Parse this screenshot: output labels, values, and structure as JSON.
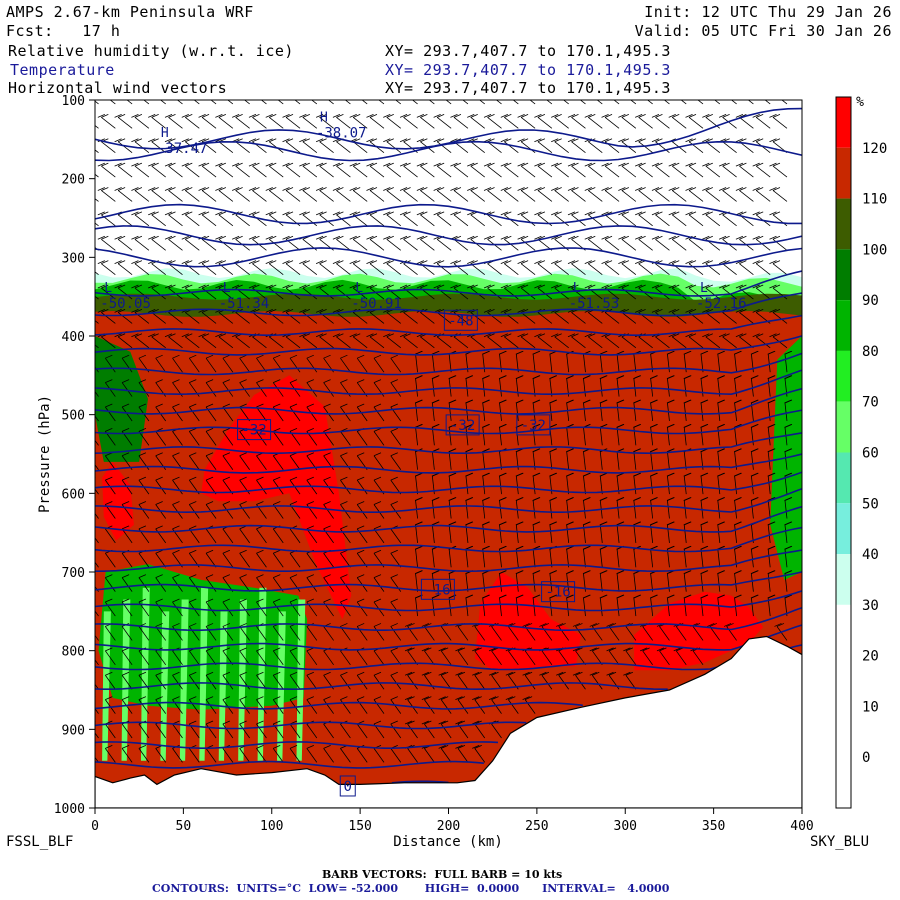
{
  "header": {
    "model": "AMPS 2.67-km Peninsula WRF",
    "fcst": "Fcst:   17 h",
    "init": "Init: 12 UTC Thu 29 Jan 26",
    "valid": "Valid: 05 UTC Fri 30 Jan 26",
    "fields": [
      {
        "name": "Relative humidity (w.r.t. ice)",
        "xy": "XY= 293.7,407.7 to 170.1,495.3",
        "color": "#000000"
      },
      {
        "name": "Temperature",
        "xy": "XY= 293.7,407.7 to 170.1,495.3",
        "color": "#1a1a9a"
      },
      {
        "name": "Horizontal wind vectors",
        "xy": "XY= 293.7,407.7 to 170.1,495.3",
        "color": "#000000"
      }
    ]
  },
  "chart_data": {
    "type": "heatmap",
    "title": "AMPS 2.67-km Peninsula WRF",
    "xlabel": "Distance (km)",
    "ylabel": "Pressure (hPa)",
    "xlim": [
      0,
      400
    ],
    "ylim": [
      1000,
      100
    ],
    "x_ticks": [
      0,
      50,
      100,
      150,
      200,
      250,
      300,
      350,
      400
    ],
    "y_ticks": [
      100,
      200,
      300,
      400,
      500,
      600,
      700,
      800,
      900,
      1000
    ],
    "x_endpoints": {
      "left": "FSSL_BLF",
      "right": "SKY_BLU"
    },
    "colorbar": {
      "unit": "%",
      "bounds": [
        -10,
        0,
        10,
        20,
        30,
        40,
        50,
        60,
        70,
        80,
        90,
        100,
        110,
        120,
        130
      ],
      "labels": [
        0,
        10,
        20,
        30,
        40,
        50,
        60,
        70,
        80,
        90,
        100,
        110,
        120
      ],
      "colors": [
        "#ffffff",
        "#ffffff",
        "#ffffff",
        "#ffffff",
        "#ccffee",
        "#77eedd",
        "#55e8b0",
        "#66ff66",
        "#22ee22",
        "#00b400",
        "#007d00",
        "#3d5c00",
        "#c82800",
        "#ff0000"
      ]
    },
    "terrain_hpa": [
      [
        0,
        960
      ],
      [
        10,
        968
      ],
      [
        20,
        962
      ],
      [
        28,
        958
      ],
      [
        35,
        970
      ],
      [
        45,
        958
      ],
      [
        60,
        950
      ],
      [
        80,
        958
      ],
      [
        100,
        955
      ],
      [
        120,
        950
      ],
      [
        130,
        958
      ],
      [
        138,
        970
      ],
      [
        150,
        970
      ],
      [
        175,
        968
      ],
      [
        205,
        968
      ],
      [
        215,
        965
      ],
      [
        225,
        940
      ],
      [
        235,
        905
      ],
      [
        250,
        885
      ],
      [
        275,
        872
      ],
      [
        300,
        860
      ],
      [
        325,
        850
      ],
      [
        345,
        830
      ],
      [
        360,
        810
      ],
      [
        370,
        785
      ],
      [
        380,
        782
      ],
      [
        392,
        795
      ],
      [
        400,
        805
      ]
    ],
    "temperature_minima": [
      {
        "label": "L",
        "value": "-50.05",
        "x": 3,
        "p": 357
      },
      {
        "label": "L",
        "value": "-51.34",
        "x": 70,
        "p": 357
      },
      {
        "label": "L",
        "value": "-50.91",
        "x": 145,
        "p": 357
      },
      {
        "label": "L",
        "value": "-51.53",
        "x": 268,
        "p": 357
      },
      {
        "label": "L",
        "value": "-52.16",
        "x": 340,
        "p": 357
      }
    ],
    "temperature_maxima": [
      {
        "label": "H",
        "value": "-37.47",
        "x": 35,
        "p": 160
      },
      {
        "label": "H",
        "value": "-38.07",
        "x": 125,
        "p": 140
      }
    ],
    "contour_labels": [
      {
        "text": "-48",
        "x": 207,
        "p": 380
      },
      {
        "text": "-32",
        "x": 90,
        "p": 519
      },
      {
        "text": "-32",
        "x": 208,
        "p": 513
      },
      {
        "text": "-32",
        "x": 248,
        "p": 513
      },
      {
        "text": "-16",
        "x": 194,
        "p": 722
      },
      {
        "text": "-16",
        "x": 262,
        "p": 725
      },
      {
        "text": "0",
        "x": 143,
        "p": 972
      }
    ],
    "humid_regions": [
      {
        "rh": 120,
        "pts": [
          [
            60,
            600
          ],
          [
            62,
            570
          ],
          [
            75,
            520
          ],
          [
            90,
            475
          ],
          [
            110,
            450
          ],
          [
            130,
            490
          ],
          [
            138,
            600
          ],
          [
            145,
            730
          ],
          [
            140,
            760
          ],
          [
            125,
            690
          ],
          [
            110,
            600
          ],
          [
            90,
            610
          ],
          [
            70,
            610
          ]
        ]
      },
      {
        "rh": 120,
        "pts": [
          [
            4,
            580
          ],
          [
            10,
            560
          ],
          [
            20,
            590
          ],
          [
            22,
            640
          ],
          [
            12,
            660
          ],
          [
            5,
            630
          ]
        ]
      },
      {
        "rh": 120,
        "pts": [
          [
            218,
            740
          ],
          [
            230,
            700
          ],
          [
            245,
            720
          ],
          [
            258,
            760
          ],
          [
            275,
            780
          ],
          [
            272,
            820
          ],
          [
            255,
            820
          ],
          [
            245,
            825
          ],
          [
            225,
            825
          ],
          [
            215,
            810
          ]
        ]
      },
      {
        "rh": 120,
        "pts": [
          [
            305,
            780
          ],
          [
            325,
            740
          ],
          [
            345,
            725
          ],
          [
            360,
            730
          ],
          [
            370,
            745
          ],
          [
            378,
            770
          ],
          [
            370,
            790
          ],
          [
            345,
            815
          ],
          [
            325,
            825
          ],
          [
            305,
            825
          ]
        ]
      },
      {
        "rh": 120,
        "pts": [
          [
            383,
            545
          ],
          [
            392,
            545
          ],
          [
            398,
            570
          ],
          [
            391,
            585
          ],
          [
            384,
            565
          ]
        ]
      },
      {
        "rh": 80,
        "pts": [
          [
            6,
            700
          ],
          [
            30,
            690
          ],
          [
            60,
            710
          ],
          [
            90,
            720
          ],
          [
            115,
            730
          ],
          [
            120,
            760
          ],
          [
            118,
            860
          ],
          [
            100,
            870
          ],
          [
            60,
            875
          ],
          [
            30,
            870
          ],
          [
            10,
            860
          ],
          [
            2,
            800
          ]
        ]
      },
      {
        "rh": 90,
        "pts": [
          [
            0,
            400
          ],
          [
            20,
            420
          ],
          [
            30,
            480
          ],
          [
            25,
            560
          ],
          [
            5,
            560
          ],
          [
            0,
            500
          ]
        ]
      },
      {
        "rh": 80,
        "pts": [
          [
            386,
            430
          ],
          [
            400,
            400
          ],
          [
            400,
            700
          ],
          [
            390,
            710
          ],
          [
            382,
            640
          ]
        ]
      }
    ],
    "rh_layers": [
      {
        "rh": 30,
        "top_hpa": 320
      },
      {
        "rh": 60,
        "top_hpa": 327
      },
      {
        "rh": 80,
        "top_hpa": 335
      },
      {
        "rh": 100,
        "top_hpa": 350
      },
      {
        "rh": 110,
        "top_hpa": 372
      }
    ],
    "barb_vectors": "FULL BARB = 10 kts",
    "contours": {
      "units": "°C",
      "low": "-52.000",
      "high": "0.0000",
      "interval": "4.0000"
    }
  },
  "footer": {
    "barb_line": "BARB VECTORS:  FULL BARB = 10 kts",
    "contours_line": "CONTOURS:  UNITS=°C  LOW= -52.000       HIGH=  0.0000      INTERVAL=   4.0000"
  }
}
